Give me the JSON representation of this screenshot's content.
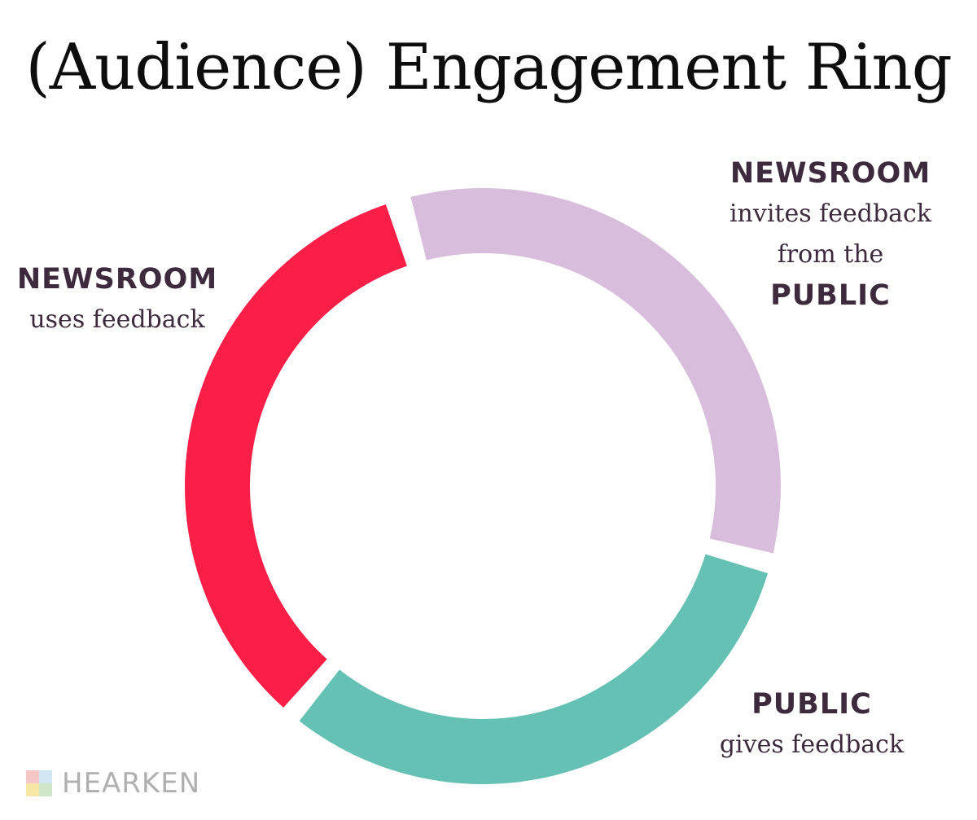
{
  "title": "(Audience) Engagement Ring",
  "labels": {
    "newsroom_uses": {
      "line1": "NEWSROOM",
      "line2": "uses feedback"
    },
    "newsroom_invites": {
      "line1": "NEWSROOM",
      "line2": "invites feedback",
      "line3": "from the",
      "line4": "PUBLIC"
    },
    "public_gives": {
      "line1": "PUBLIC",
      "line2": "gives feedback"
    }
  },
  "ring": {
    "segments": [
      {
        "name": "newsroom-invites-segment",
        "color": "#d8bedc"
      },
      {
        "name": "public-gives-segment",
        "color": "#65c1b3"
      },
      {
        "name": "newsroom-uses-segment",
        "color": "#fb1f48"
      }
    ]
  },
  "brand": {
    "name": "HEARKEN",
    "mark_colors": [
      "#f5c6c6",
      "#d0e6f2",
      "#f7e7a6",
      "#cfe7c9"
    ]
  }
}
